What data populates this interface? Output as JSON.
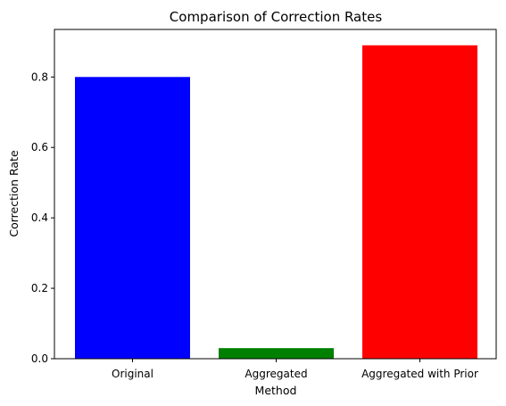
{
  "chart_data": {
    "type": "bar",
    "title": "Comparison of Correction Rates",
    "xlabel": "Method",
    "ylabel": "Correction Rate",
    "categories": [
      "Original",
      "Aggregated",
      "Aggregated with Prior"
    ],
    "values": [
      0.8,
      0.03,
      0.89
    ],
    "colors": [
      "#0000ff",
      "#008000",
      "#ff0000"
    ],
    "ylim": [
      0,
      0.935
    ],
    "yticks": [
      0.0,
      0.2,
      0.4,
      0.6,
      0.8
    ],
    "ytick_labels": [
      "0.0",
      "0.2",
      "0.4",
      "0.6",
      "0.8"
    ],
    "grid": false,
    "legend": "none"
  }
}
